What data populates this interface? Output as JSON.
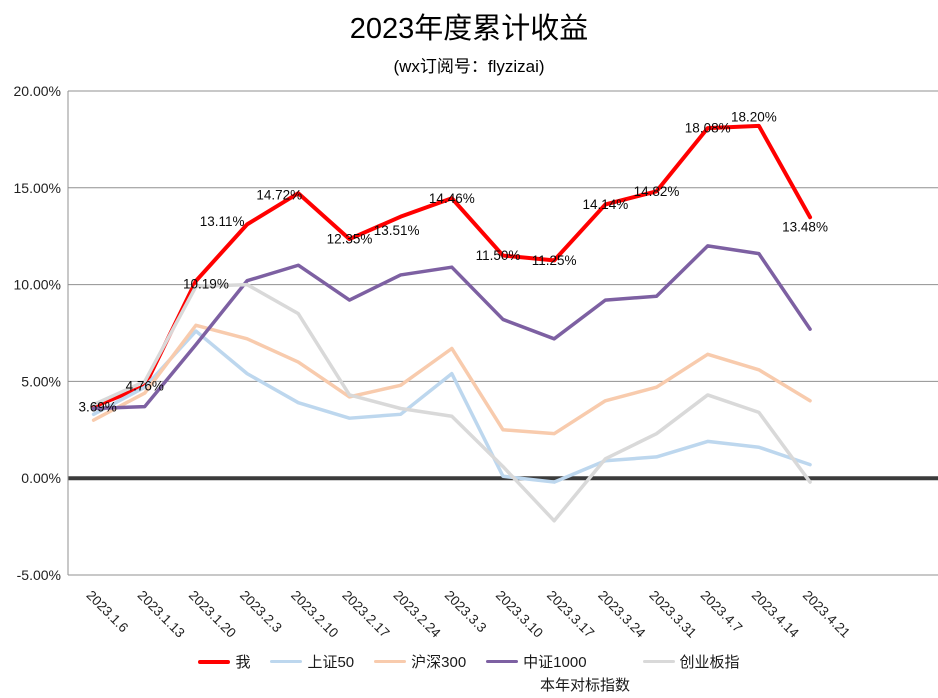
{
  "title": "2023年度累计收益",
  "subtitle": "(wx订阅号：flyzizai)",
  "footnote": "本年对标指数",
  "chart_data": {
    "type": "line",
    "title": "2023年度累计收益",
    "subtitle": "(wx订阅号：flyzizai)",
    "categories": [
      "2023.1.6",
      "2023.1.13",
      "2023.1.20",
      "2023.2.3",
      "2023.2.10",
      "2023.2.17",
      "2023.2.24",
      "2023.3.3",
      "2023.3.10",
      "2023.3.17",
      "2023.3.24",
      "2023.3.31",
      "2023.4.7",
      "2023.4.14",
      "2023.4.21"
    ],
    "x_slots": 17,
    "ylim": [
      -5,
      20
    ],
    "grid": true,
    "legend_position": "bottom",
    "yticks": [
      {
        "v": 20,
        "label": "20.00%"
      },
      {
        "v": 15,
        "label": "15.00%"
      },
      {
        "v": 10,
        "label": "10.00%"
      },
      {
        "v": 5,
        "label": "5.00%"
      },
      {
        "v": 0,
        "label": "0.00%"
      },
      {
        "v": -5,
        "label": "-5.00%"
      }
    ],
    "grid_color": "#909090",
    "zero_line_color": "#3b3b3b",
    "tick_color": "#1f1f1f",
    "label_color": "#0a0a0a",
    "series": [
      {
        "key": "me",
        "name": "我",
        "color": "#ff0000",
        "width": 4,
        "data_labels": true,
        "values": [
          3.69,
          4.76,
          10.19,
          13.11,
          14.72,
          12.35,
          13.51,
          14.46,
          11.5,
          11.25,
          14.14,
          14.82,
          18.08,
          18.2,
          13.48
        ],
        "label_offsets": {
          "0": [
            4,
            0
          ],
          "2": [
            10,
            3
          ],
          "3": [
            -25,
            -3
          ],
          "4": [
            -19,
            2
          ],
          "6": [
            -4,
            14
          ],
          "8": [
            -5,
            0
          ],
          "13": [
            -5,
            -9
          ],
          "14": [
            -5,
            10
          ]
        }
      },
      {
        "key": "sse50",
        "name": "上证50",
        "color": "#bdd7ee",
        "width": 3.5,
        "data_labels": false,
        "values": [
          3.3,
          4.7,
          7.6,
          5.4,
          3.9,
          3.1,
          3.3,
          5.4,
          0.1,
          -0.2,
          0.9,
          1.1,
          1.9,
          1.6,
          0.7
        ]
      },
      {
        "key": "hs300",
        "name": "沪深300",
        "color": "#f8cbad",
        "width": 3.5,
        "data_labels": false,
        "values": [
          3.0,
          4.4,
          7.9,
          7.2,
          6.0,
          4.2,
          4.8,
          6.7,
          2.5,
          2.3,
          4.0,
          4.7,
          6.4,
          5.6,
          4.0
        ]
      },
      {
        "key": "csi1000",
        "name": "中证1000",
        "color": "#7d60a2",
        "width": 3.5,
        "data_labels": false,
        "values": [
          3.6,
          3.7,
          6.9,
          10.2,
          11.0,
          9.2,
          10.5,
          10.9,
          8.2,
          7.2,
          9.2,
          9.4,
          12.0,
          11.6,
          7.7
        ]
      },
      {
        "key": "chinext",
        "name": "创业板指",
        "color": "#d9d9d9",
        "width": 3.5,
        "data_labels": false,
        "values": [
          3.8,
          5.0,
          9.9,
          10.0,
          8.5,
          4.3,
          3.6,
          3.2,
          0.6,
          -2.2,
          1.0,
          2.3,
          4.3,
          3.4,
          -0.2
        ]
      }
    ]
  }
}
